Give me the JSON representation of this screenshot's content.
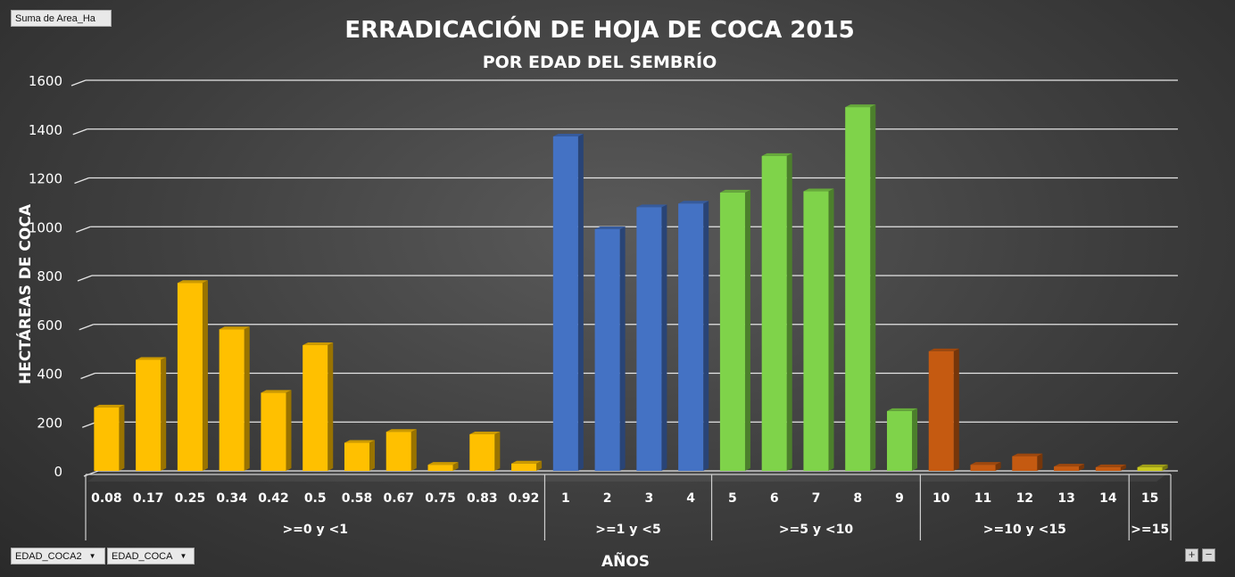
{
  "filter_field": {
    "label": "Suma de Area_Ha"
  },
  "axis_fields": [
    {
      "label": "EDAD_COCA2"
    },
    {
      "label": "EDAD_COCA"
    }
  ],
  "zoom": {
    "plus": "+",
    "minus": "−"
  },
  "chart_data": {
    "type": "bar",
    "title": "ERRADICACIÓN DE HOJA DE COCA 2015",
    "subtitle": "POR EDAD DEL SEMBRÍO",
    "xlabel": "AÑOS",
    "ylabel": "HECTÁREAS DE COCA",
    "ylim": [
      0,
      1600
    ],
    "yticks": [
      0,
      200,
      400,
      600,
      800,
      1000,
      1200,
      1400,
      1600
    ],
    "grid": true,
    "categories": [
      "0.08",
      "0.17",
      "0.25",
      "0.34",
      "0.42",
      "0.5",
      "0.58",
      "0.67",
      "0.75",
      "0.83",
      "0.92",
      "1",
      "2",
      "3",
      "4",
      "5",
      "6",
      "7",
      "8",
      "9",
      "10",
      "11",
      "12",
      "13",
      "14",
      "15"
    ],
    "values": [
      260,
      455,
      770,
      580,
      320,
      515,
      115,
      160,
      25,
      150,
      30,
      1370,
      990,
      1080,
      1095,
      1140,
      1290,
      1145,
      1490,
      245,
      490,
      25,
      60,
      18,
      15,
      15
    ],
    "groups": [
      {
        "label": ">=0 y <1",
        "start": 0,
        "end": 10,
        "color": "#ffc000"
      },
      {
        "label": ">=1 y <5",
        "start": 11,
        "end": 14,
        "color": "#4472c4"
      },
      {
        "label": ">=5 y <10",
        "start": 15,
        "end": 19,
        "color": "#7fd34a"
      },
      {
        "label": ">=10 y <15",
        "start": 20,
        "end": 24,
        "color": "#c55a11"
      },
      {
        "label": ">=15",
        "start": 25,
        "end": 25,
        "color": "#c8c81e"
      }
    ]
  }
}
